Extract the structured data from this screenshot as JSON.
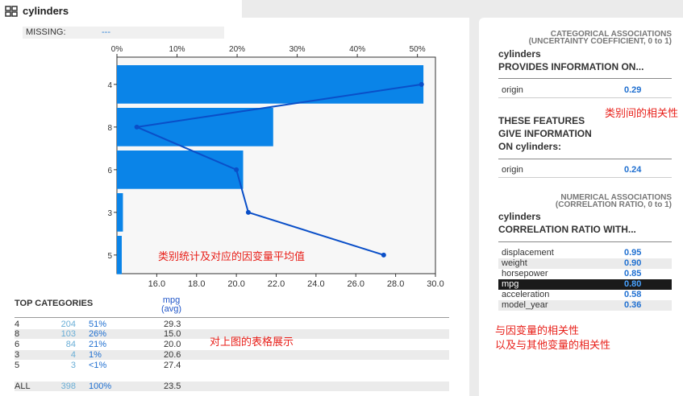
{
  "header": {
    "title": "cylinders"
  },
  "missing": {
    "label": "MISSING:",
    "value": "---"
  },
  "chart_data": {
    "type": "bar",
    "orientation": "horizontal",
    "categories": [
      "4",
      "8",
      "6",
      "3",
      "5"
    ],
    "series": [
      {
        "name": "",
        "axis": "top-percent",
        "values": [
          51,
          26,
          21,
          1,
          0.8
        ]
      }
    ],
    "line_series": {
      "axis": "bottom-mpg",
      "values": [
        29.3,
        15.0,
        20.0,
        20.6,
        27.4
      ]
    },
    "top_axis": {
      "ticks": [
        "0%",
        "10%",
        "20%",
        "30%",
        "40%",
        "50%"
      ],
      "range": [
        0,
        53
      ]
    },
    "bottom_axis": {
      "ticks": [
        "16.0",
        "18.0",
        "20.0",
        "22.0",
        "24.0",
        "26.0",
        "28.0",
        "30.0"
      ],
      "range": [
        14.0,
        30.0
      ]
    },
    "grid": false
  },
  "table": {
    "title": "TOP CATEGORIES",
    "mpg_header_1": "mpg",
    "mpg_header_2": "(avg)",
    "rows": [
      {
        "cat": "4",
        "count": "204",
        "pct": "51%",
        "mpg": "29.3"
      },
      {
        "cat": "8",
        "count": "103",
        "pct": "26%",
        "mpg": "15.0"
      },
      {
        "cat": "6",
        "count": "84",
        "pct": "21%",
        "mpg": "20.0"
      },
      {
        "cat": "3",
        "count": "4",
        "pct": "1%",
        "mpg": "20.6"
      },
      {
        "cat": "5",
        "count": "3",
        "pct": "<1%",
        "mpg": "27.4"
      }
    ],
    "total": {
      "cat": "ALL",
      "count": "398",
      "pct": "100%",
      "mpg": "23.5"
    }
  },
  "right_panel": {
    "categorical_title": "CATEGORICAL ASSOCIATIONS",
    "categorical_sub": "(UNCERTAINTY COEFFICIENT, 0 to 1)",
    "provides_feature": "cylinders",
    "provides_label": "PROVIDES INFORMATION ON...",
    "provides_rows": [
      {
        "name": "origin",
        "value": "0.29"
      }
    ],
    "gives_l1": "THESE FEATURES",
    "gives_l2": "GIVE INFORMATION",
    "gives_l3": "ON cylinders:",
    "gives_rows": [
      {
        "name": "origin",
        "value": "0.24"
      }
    ],
    "numerical_title": "NUMERICAL ASSOCIATIONS",
    "numerical_sub": "(CORRELATION RATIO, 0 to 1)",
    "corr_feature": "cylinders",
    "corr_label": "CORRELATION RATIO WITH...",
    "corr_rows": [
      {
        "name": "displacement",
        "value": "0.95"
      },
      {
        "name": "weight",
        "value": "0.90"
      },
      {
        "name": "horsepower",
        "value": "0.85"
      },
      {
        "name": "mpg",
        "value": "0.80"
      },
      {
        "name": "acceleration",
        "value": "0.58"
      },
      {
        "name": "model_year",
        "value": "0.36"
      }
    ]
  },
  "annotations": {
    "chart_note": "类别统计及对应的因变量平均值",
    "table_note": "对上图的表格展示",
    "cat_assoc_note": "类别间的相关性",
    "num_assoc_note_1": "与因变量的相关性",
    "num_assoc_note_2": "以及与其他变量的相关性"
  },
  "colors": {
    "bar": "#0a84e8",
    "line": "#0a4fc8",
    "accent": "#1f6fd0",
    "annotation": "#e8201a"
  }
}
